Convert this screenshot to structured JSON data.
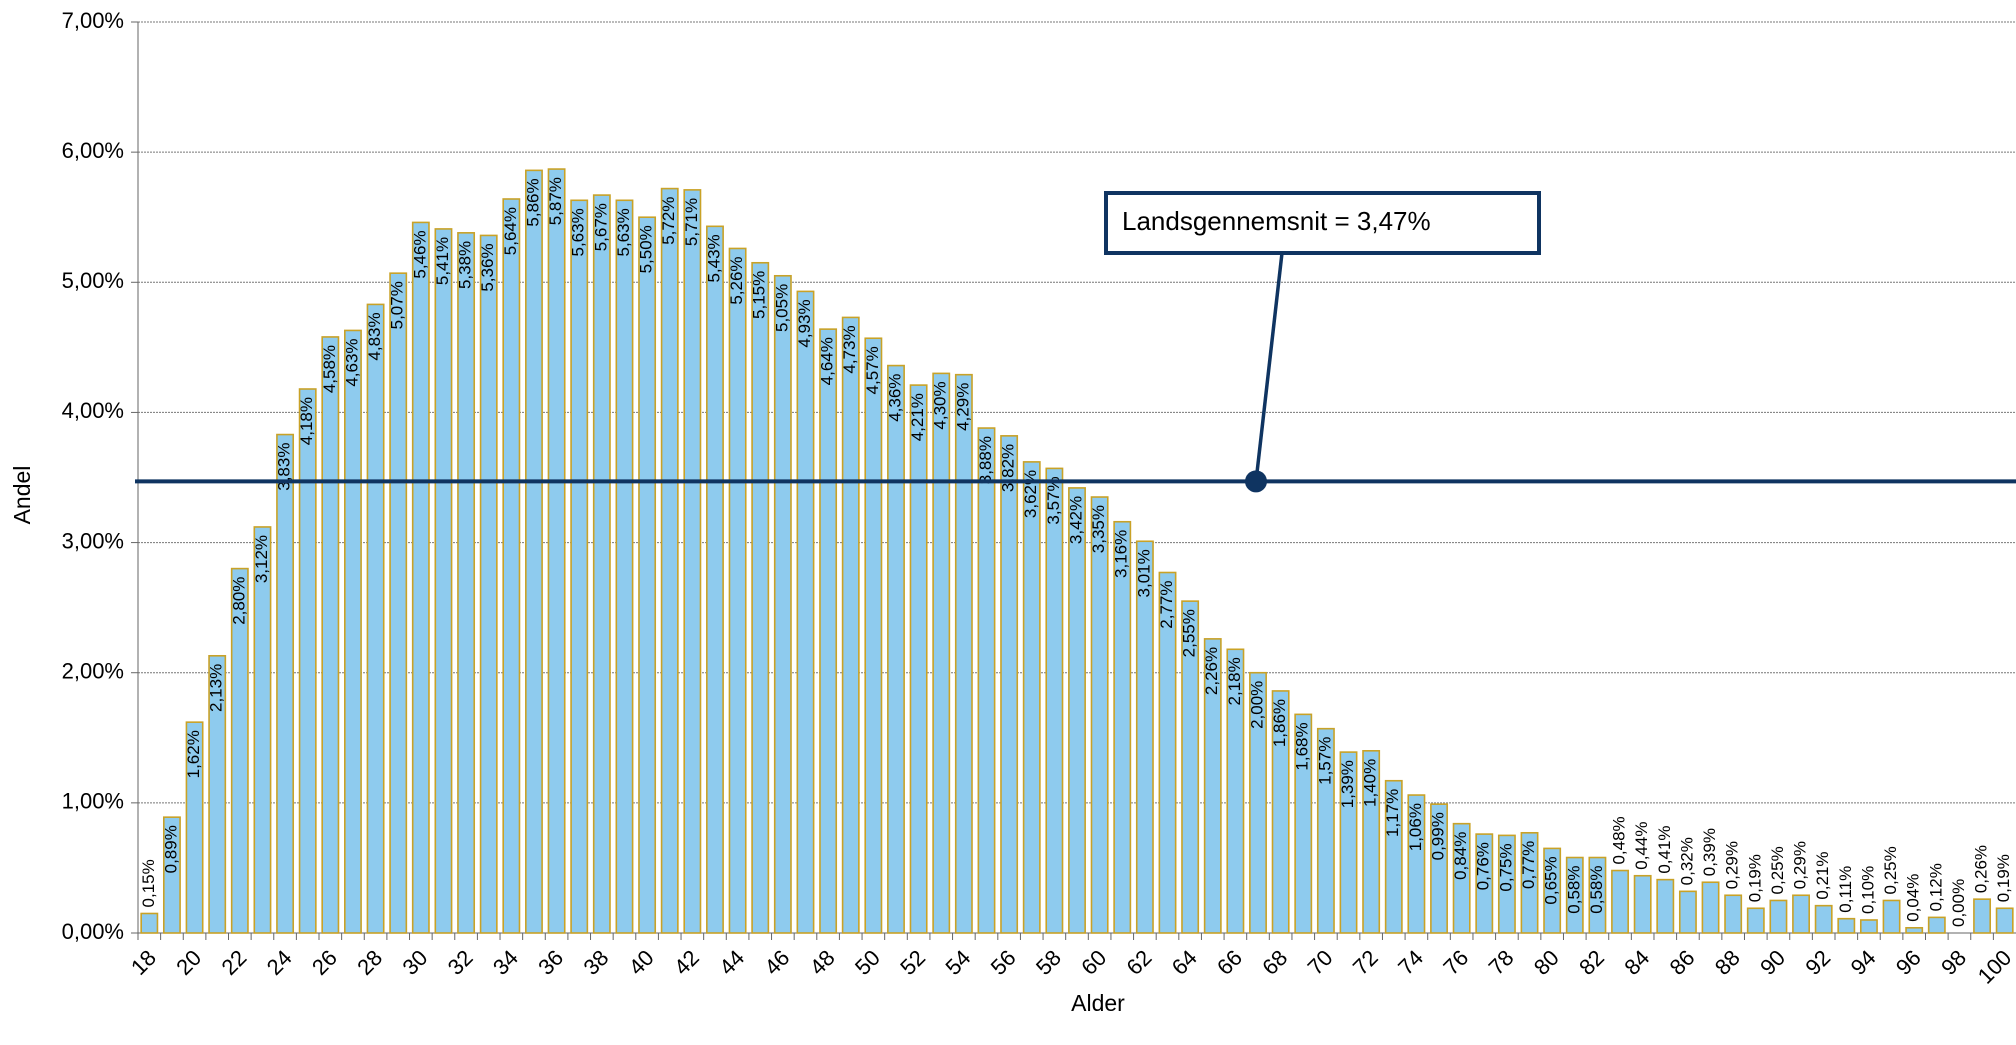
{
  "chart_data": {
    "type": "bar",
    "x_label": "Alder",
    "y_label": "Andel",
    "categories": [
      "18",
      null,
      "20",
      null,
      "22",
      null,
      "24",
      null,
      "26",
      null,
      "28",
      null,
      "30",
      null,
      "32",
      null,
      "34",
      null,
      "36",
      null,
      "38",
      null,
      "40",
      null,
      "42",
      null,
      "44",
      null,
      "46",
      null,
      "48",
      null,
      "50",
      null,
      "52",
      null,
      "54",
      null,
      "56",
      null,
      "58",
      null,
      "60",
      null,
      "62",
      null,
      "64",
      null,
      "66",
      null,
      "68",
      null,
      "70",
      null,
      "72",
      null,
      "74",
      null,
      "76",
      null,
      "78",
      null,
      "80",
      null,
      "82",
      null,
      "84",
      null,
      "86",
      null,
      "88",
      null,
      "90",
      null,
      "92",
      null,
      "94",
      null,
      "96",
      null,
      "98",
      null,
      "100"
    ],
    "values": [
      0.15,
      0.89,
      1.62,
      2.13,
      2.8,
      3.12,
      3.83,
      4.18,
      4.58,
      4.63,
      4.83,
      5.07,
      5.46,
      5.41,
      5.38,
      5.36,
      5.64,
      5.86,
      5.87,
      5.63,
      5.67,
      5.63,
      5.5,
      5.72,
      5.71,
      5.43,
      5.26,
      5.15,
      5.05,
      4.93,
      4.64,
      4.73,
      4.57,
      4.36,
      4.21,
      4.3,
      4.29,
      3.88,
      3.82,
      3.62,
      3.57,
      3.42,
      3.35,
      3.16,
      3.01,
      2.77,
      2.55,
      2.26,
      2.18,
      2.0,
      1.86,
      1.68,
      1.57,
      1.39,
      1.4,
      1.17,
      1.06,
      0.99,
      0.84,
      0.76,
      0.75,
      0.77,
      0.65,
      0.58,
      0.58,
      0.48,
      0.44,
      0.41,
      0.32,
      0.39,
      0.29,
      0.19,
      0.25,
      0.29,
      0.21,
      0.11,
      0.1,
      0.25,
      0.04,
      0.12,
      0.0,
      0.26,
      0.19
    ],
    "value_labels": [
      "0,15%",
      "0,89%",
      "1,62%",
      "2,13%",
      "2,80%",
      "3,12%",
      "3,83%",
      "4,18%",
      "4,58%",
      "4,63%",
      "4,83%",
      "5,07%",
      "5,46%",
      "5,41%",
      "5,38%",
      "5,36%",
      "5,64%",
      "5,86%",
      "5,87%",
      "5,63%",
      "5,67%",
      "5,63%",
      "5,50%",
      "5,72%",
      "5,71%",
      "5,43%",
      "5,26%",
      "5,15%",
      "5,05%",
      "4,93%",
      "4,64%",
      "4,73%",
      "4,57%",
      "4,36%",
      "4,21%",
      "4,30%",
      "4,29%",
      "3,88%",
      "3,82%",
      "3,62%",
      "3,57%",
      "3,42%",
      "3,35%",
      "3,16%",
      "3,01%",
      "2,77%",
      "2,55%",
      "2,26%",
      "2,18%",
      "2,00%",
      "1,86%",
      "1,68%",
      "1,57%",
      "1,39%",
      "1,40%",
      "1,17%",
      "1,06%",
      "0,99%",
      "0,84%",
      "0,76%",
      "0,75%",
      "0,77%",
      "0,65%",
      "0,58%",
      "0,58%",
      "0,48%",
      "0,44%",
      "0,41%",
      "0,32%",
      "0,39%",
      "0,29%",
      "0,19%",
      "0,25%",
      "0,29%",
      "0,21%",
      "0,11%",
      "0,10%",
      "0,25%",
      "0,04%",
      "0,12%",
      "0,00%",
      "0,26%",
      "0,19%"
    ],
    "color": "#8ecbee",
    "edge_color": "#c9a227",
    "ylim": [
      0,
      7
    ],
    "yticks": [
      {
        "value": 0,
        "label": "0,00%"
      },
      {
        "value": 1,
        "label": "1,00%"
      },
      {
        "value": 2,
        "label": "2,00%"
      },
      {
        "value": 3,
        "label": "3,00%"
      },
      {
        "value": 4,
        "label": "4,00%"
      },
      {
        "value": 5,
        "label": "5,00%"
      },
      {
        "value": 6,
        "label": "6,00%"
      },
      {
        "value": 7,
        "label": "7,00%"
      }
    ],
    "grid": true,
    "average": {
      "value": 3.47,
      "label": "Landsgennemsnit = 3,47%",
      "color": "#0f3461"
    }
  }
}
